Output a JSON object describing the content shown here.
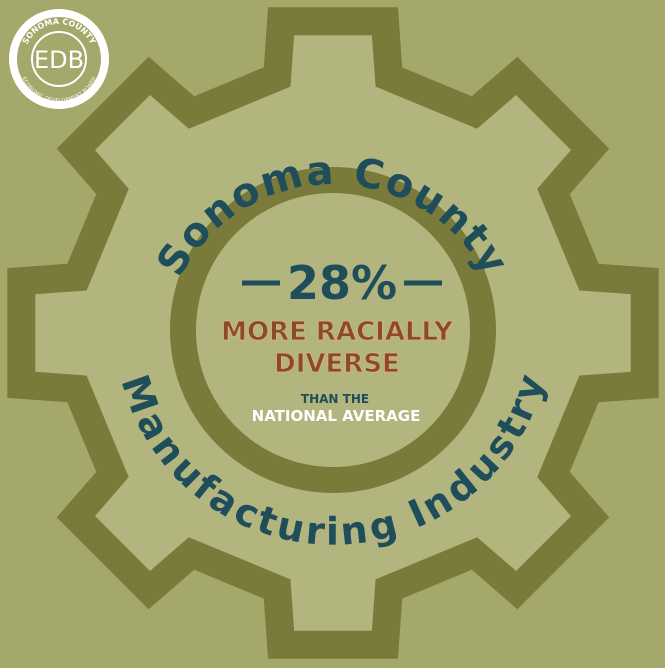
{
  "logo": {
    "initials": "EDB",
    "top_text": "SONOMA COUNTY",
    "bottom_text": "ECONOMIC DEVELOPMENT BOARD"
  },
  "arc_top": "Sonoma County",
  "arc_bottom": "Manufacturing Industry",
  "stat": {
    "figure": "28%",
    "line1": "MORE RACIALLY",
    "line2": "DIVERSE",
    "note1": "THAN THE",
    "note2": "NATIONAL AVERAGE"
  }
}
